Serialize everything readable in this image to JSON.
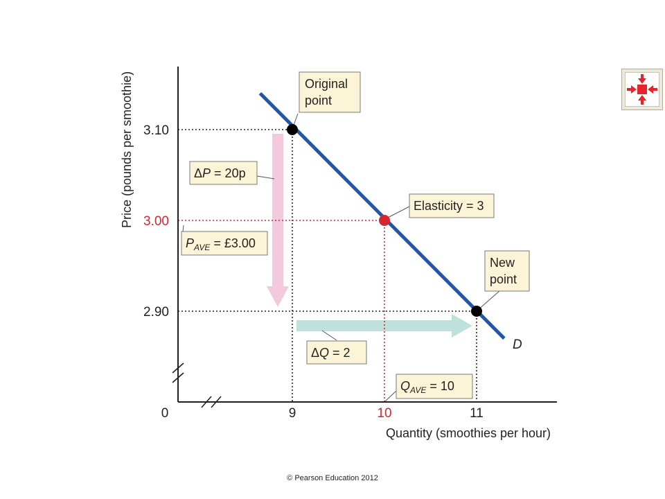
{
  "chart_data": {
    "type": "line",
    "xlabel": "Quantity (smoothies per hour)",
    "ylabel": "Price (pounds per smoothie)",
    "x_ticks": [
      "0",
      "9",
      "10",
      "11"
    ],
    "y_ticks": [
      "3.10",
      "3.00",
      "2.90"
    ],
    "xlim": [
      8,
      11.7
    ],
    "ylim": [
      2.81,
      3.17
    ],
    "series": [
      {
        "name": "D",
        "x": [
          8.65,
          11.3
        ],
        "y": [
          3.14,
          2.87
        ],
        "color": "#2357a6"
      }
    ],
    "points": [
      {
        "label": "Original point",
        "x": 9,
        "y": 3.1,
        "color": "#000000"
      },
      {
        "label": "Elasticity = 3",
        "x": 10,
        "y": 3.0,
        "color": "#d5252f"
      },
      {
        "label": "New point",
        "x": 11,
        "y": 2.9,
        "color": "#000000"
      }
    ],
    "annotations": {
      "delta_p": {
        "sym": "Δ",
        "var": "P",
        "rest": " = 20p"
      },
      "p_ave": {
        "var": "P",
        "sub": "AVE",
        "rest": " = £3.00"
      },
      "delta_q": {
        "sym": "Δ",
        "var": "Q",
        "rest": " = 2"
      },
      "q_ave": {
        "var": "Q",
        "sub": "AVE",
        "rest": " = 10"
      },
      "original_point": [
        "Original",
        "point"
      ],
      "new_point": [
        "New",
        "point"
      ],
      "elasticity": "Elasticity = 3",
      "curve_label": "D"
    },
    "colors": {
      "demand": "#2357a6",
      "midpoint": "#d5252f",
      "price_arrow": "#f2c9dd",
      "quantity_arrow": "#bfe1dc",
      "callout_fill": "#fbf4d6"
    },
    "grid": false
  },
  "copyright": "© Pearson Education 2012",
  "nav_button": {
    "icon": "collapse-arrows-icon",
    "color": "#e8232b"
  }
}
